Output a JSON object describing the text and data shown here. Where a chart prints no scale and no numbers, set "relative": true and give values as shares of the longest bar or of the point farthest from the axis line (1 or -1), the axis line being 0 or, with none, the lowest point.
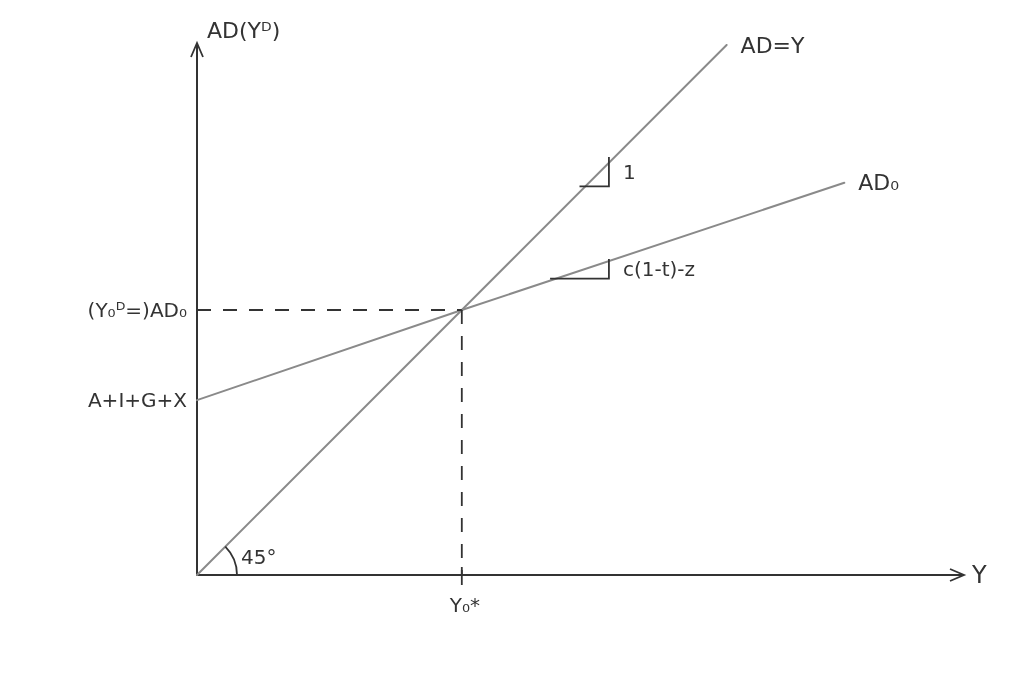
{
  "chart_data": {
    "type": "line",
    "relative": true,
    "xlabel": "Y",
    "ylabel": "AD(Yᴰ)",
    "marker": "none",
    "legend": false,
    "grid": false,
    "categories": [
      null,
      null,
      null,
      null,
      null,
      null,
      null,
      null,
      null,
      null,
      null,
      null,
      null,
      null,
      null,
      null,
      null,
      null,
      null,
      null,
      null,
      null,
      null,
      null,
      null,
      null,
      null
    ],
    "series": [
      {
        "name": "AD=Y",
        "color": "#8a8a8a",
        "values": [
          0,
          null,
          null,
          null,
          null,
          null,
          null,
          null,
          null,
          0.5,
          null,
          null,
          null,
          null,
          null,
          null,
          null,
          null,
          1.0,
          null,
          null,
          null,
          null,
          null,
          null,
          null,
          null
        ]
      },
      {
        "name": "AD₀",
        "color": "#8a8a8a",
        "values": [
          0.33,
          null,
          null,
          null,
          null,
          null,
          null,
          null,
          null,
          0.5,
          null,
          null,
          null,
          null,
          null,
          null,
          null,
          null,
          null,
          null,
          null,
          null,
          0.74,
          null,
          null,
          null,
          null
        ]
      }
    ],
    "annotations": [
      "A+I+G+X",
      "(Y₀ᴰ=)AD₀",
      "1",
      "c(1-t)-z",
      "45°",
      "Y₀*"
    ]
  }
}
